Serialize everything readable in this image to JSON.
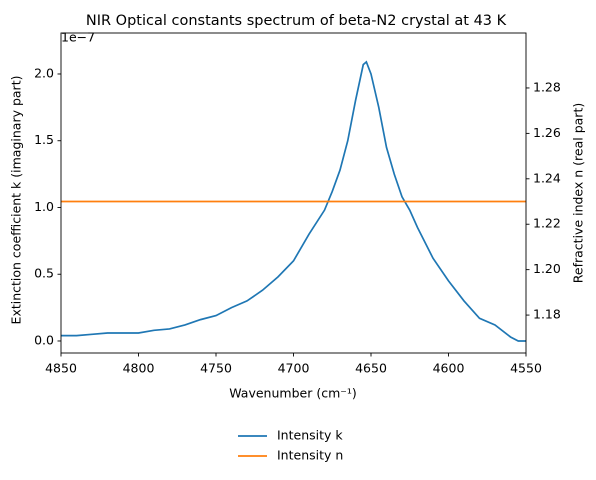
{
  "chart_data": {
    "type": "line",
    "title": "NIR Optical constants spectrum of beta-N2 crystal at 43 K",
    "x_label": "Wavenumber (cm⁻¹)",
    "y_label": "Extinction coefficient k (imaginary part)",
    "y2_label": "Refractive index n (real part)",
    "y_offset_label": "1e−7",
    "x": [
      4850,
      4840,
      4830,
      4820,
      4810,
      4800,
      4790,
      4780,
      4770,
      4760,
      4750,
      4740,
      4730,
      4720,
      4710,
      4700,
      4690,
      4680,
      4675,
      4670,
      4665,
      4660,
      4655,
      4653,
      4650,
      4645,
      4640,
      4635,
      4630,
      4625,
      4620,
      4610,
      4600,
      4590,
      4580,
      4570,
      4560,
      4555,
      4550
    ],
    "series": [
      {
        "name": "Intensity k",
        "color": "#1f77b4",
        "axis": "y",
        "values": [
          0.04,
          0.04,
          0.05,
          0.06,
          0.06,
          0.06,
          0.08,
          0.09,
          0.12,
          0.16,
          0.19,
          0.25,
          0.3,
          0.38,
          0.48,
          0.6,
          0.8,
          0.98,
          1.12,
          1.28,
          1.5,
          1.8,
          2.07,
          2.09,
          2.0,
          1.75,
          1.45,
          1.25,
          1.08,
          0.98,
          0.85,
          0.62,
          0.45,
          0.3,
          0.17,
          0.12,
          0.03,
          0.0,
          0.0
        ]
      },
      {
        "name": "Intensity n",
        "color": "#ff7f0e",
        "axis": "y2",
        "values": [
          1.23,
          1.23,
          1.23,
          1.23,
          1.23,
          1.23,
          1.23,
          1.23,
          1.23,
          1.23,
          1.23,
          1.23,
          1.23,
          1.23,
          1.23,
          1.23,
          1.23,
          1.23,
          1.23,
          1.23,
          1.23,
          1.23,
          1.23,
          1.23,
          1.23,
          1.23,
          1.23,
          1.23,
          1.23,
          1.23,
          1.23,
          1.23,
          1.23,
          1.23,
          1.23,
          1.23,
          1.23,
          1.23,
          1.23
        ]
      }
    ],
    "xlim": [
      4850,
      4550
    ],
    "xticks": [
      4850,
      4800,
      4750,
      4700,
      4650,
      4600,
      4550
    ],
    "ylim": [
      -0.09,
      2.307
    ],
    "yticks": [
      {
        "value": 0,
        "label": "0.0"
      },
      0.5,
      {
        "value": 1,
        "label": "1.0"
      },
      1.5,
      {
        "value": 2,
        "label": "2.0"
      }
    ],
    "y2lim": [
      1.1633,
      1.3042
    ],
    "y2ticks": [
      1.18,
      {
        "value": 1.2,
        "label": "1.20"
      },
      1.22,
      1.24,
      1.26,
      1.28
    ],
    "legend": "below"
  }
}
